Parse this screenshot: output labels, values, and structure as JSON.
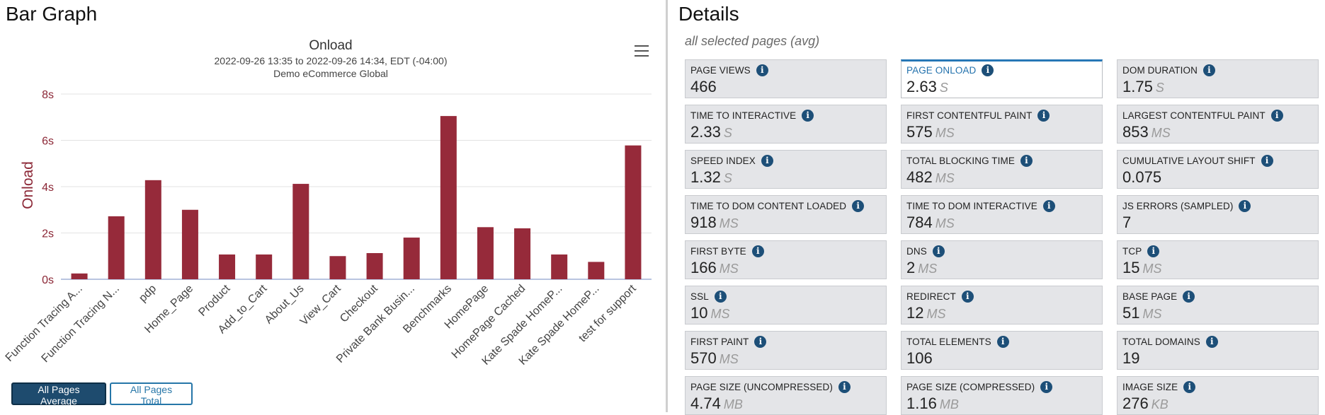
{
  "left": {
    "title": "Bar Graph",
    "buttons": {
      "average": "All Pages Average",
      "total": "All Pages Total"
    }
  },
  "right": {
    "title": "Details",
    "subtitle": "all selected pages (avg)",
    "selected_index": 1,
    "tiles": [
      {
        "label": "PAGE VIEWS",
        "value": "466",
        "unit": ""
      },
      {
        "label": "PAGE ONLOAD",
        "value": "2.63",
        "unit": "S"
      },
      {
        "label": "DOM DURATION",
        "value": "1.75",
        "unit": "S"
      },
      {
        "label": "TIME TO INTERACTIVE",
        "value": "2.33",
        "unit": "S"
      },
      {
        "label": "FIRST CONTENTFUL PAINT",
        "value": "575",
        "unit": "MS"
      },
      {
        "label": "LARGEST CONTENTFUL PAINT",
        "value": "853",
        "unit": "MS"
      },
      {
        "label": "SPEED INDEX",
        "value": "1.32",
        "unit": "S"
      },
      {
        "label": "TOTAL BLOCKING TIME",
        "value": "482",
        "unit": "MS"
      },
      {
        "label": "CUMULATIVE LAYOUT SHIFT",
        "value": "0.075",
        "unit": ""
      },
      {
        "label": "TIME TO DOM CONTENT LOADED",
        "value": "918",
        "unit": "MS"
      },
      {
        "label": "TIME TO DOM INTERACTIVE",
        "value": "784",
        "unit": "MS"
      },
      {
        "label": "JS ERRORS (SAMPLED)",
        "value": "7",
        "unit": ""
      },
      {
        "label": "FIRST BYTE",
        "value": "166",
        "unit": "MS"
      },
      {
        "label": "DNS",
        "value": "2",
        "unit": "MS"
      },
      {
        "label": "TCP",
        "value": "15",
        "unit": "MS"
      },
      {
        "label": "SSL",
        "value": "10",
        "unit": "MS"
      },
      {
        "label": "REDIRECT",
        "value": "12",
        "unit": "MS"
      },
      {
        "label": "BASE PAGE",
        "value": "51",
        "unit": "MS"
      },
      {
        "label": "FIRST PAINT",
        "value": "570",
        "unit": "MS"
      },
      {
        "label": "TOTAL ELEMENTS",
        "value": "106",
        "unit": ""
      },
      {
        "label": "TOTAL DOMAINS",
        "value": "19",
        "unit": ""
      },
      {
        "label": "PAGE SIZE (UNCOMPRESSED)",
        "value": "4.74",
        "unit": "MB"
      },
      {
        "label": "PAGE SIZE (COMPRESSED)",
        "value": "1.16",
        "unit": "MB"
      },
      {
        "label": "IMAGE SIZE",
        "value": "276",
        "unit": "KB"
      }
    ]
  },
  "colors": {
    "bar": "#962a3a",
    "axis_text": "#8b2635",
    "accent": "#1e4b6e"
  },
  "chart_data": {
    "type": "bar",
    "title": "Onload",
    "subtitle_lines": [
      "2022-09-26 13:35 to 2022-09-26 14:34, EDT (-04:00)",
      "Demo eCommerce Global"
    ],
    "ylabel": "Onload",
    "ylim": [
      0,
      8
    ],
    "yticks": [
      0,
      2,
      4,
      6,
      8
    ],
    "ytick_labels": [
      "0s",
      "2s",
      "4s",
      "6s",
      "8s"
    ],
    "grid": true,
    "categories": [
      "Function Tracing A...",
      "Function Tracing N...",
      "pdp",
      "Home_Page",
      "Product",
      "Add_to_Cart",
      "About_Us",
      "View_Cart",
      "Checkout",
      "Private Bank Busin...",
      "Benchmarks",
      "HomePage",
      "HomePage Cached",
      "Kate Spade HomeP...",
      "Kate Spade HomeP...",
      "test for support"
    ],
    "values": [
      0.25,
      2.72,
      4.28,
      3.0,
      1.07,
      1.07,
      4.12,
      1.0,
      1.13,
      1.8,
      7.05,
      2.25,
      2.2,
      1.07,
      0.75,
      5.78
    ]
  }
}
